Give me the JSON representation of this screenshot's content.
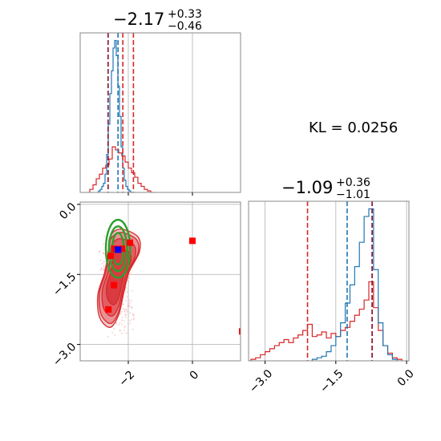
{
  "chart_data": {
    "type": "corner",
    "kl_label": "KL = 0.0256",
    "colors": {
      "posterior_a": "#1f77b4",
      "posterior_b": "#d62728",
      "contour_green": "#2ca02c",
      "marker_red": "#ff0000",
      "marker_blue": "#0000ff",
      "true_line": "#8c1a3a",
      "grid": "#b0b0b0"
    },
    "params": [
      {
        "title_main": "−2.17",
        "title_sup": "+0.33",
        "title_sub": "−0.46",
        "range": [
          -3.5,
          1.5
        ],
        "ticks": [
          -2,
          0
        ],
        "tick_labels": [
          "−2",
          "0"
        ],
        "quantile_lines_b": [
          -2.63,
          -2.17,
          -1.84
        ],
        "quantile_lines_a": [
          -2.32
        ],
        "true_value": -2.63
      },
      {
        "title_main": "−1.09",
        "title_sup": "+0.36",
        "title_sub": "−1.01",
        "range": [
          -3.35,
          0.05
        ],
        "ticks": [
          -3.0,
          -1.5,
          0.0
        ],
        "tick_labels": [
          "−3.0",
          "−1.5",
          "0.0"
        ],
        "quantile_lines_b": [
          -2.1,
          -0.73
        ],
        "quantile_lines_a": [
          -1.26
        ],
        "true_value": -0.73
      }
    ],
    "hist1_a": {
      "x": [
        -2.95,
        -2.9,
        -2.85,
        -2.8,
        -2.75,
        -2.7,
        -2.65,
        -2.6,
        -2.55,
        -2.5,
        -2.45,
        -2.4,
        -2.35,
        -2.3,
        -2.25,
        -2.2,
        -2.15,
        -2.1,
        -2.05,
        -2.0,
        -1.95,
        -1.9
      ],
      "y": [
        0,
        0.01,
        0.02,
        0.04,
        0.06,
        0.12,
        0.25,
        0.45,
        0.65,
        0.8,
        0.95,
        1.0,
        0.9,
        0.7,
        0.5,
        0.3,
        0.16,
        0.08,
        0.04,
        0.02,
        0.01,
        0
      ]
    },
    "hist1_b": {
      "x": [
        -3.15,
        -3.05,
        -2.95,
        -2.85,
        -2.75,
        -2.65,
        -2.55,
        -2.45,
        -2.35,
        -2.25,
        -2.15,
        -2.05,
        -1.95,
        -1.85,
        -1.75,
        -1.65,
        -1.55,
        -1.45,
        -1.35,
        -1.25
      ],
      "y": [
        0.02,
        0.05,
        0.09,
        0.12,
        0.16,
        0.18,
        0.22,
        0.3,
        0.28,
        0.26,
        0.24,
        0.2,
        0.16,
        0.13,
        0.1,
        0.06,
        0.04,
        0.02,
        0.01,
        0
      ]
    },
    "hist2_a": {
      "x": [
        -1.95,
        -1.85,
        -1.75,
        -1.65,
        -1.55,
        -1.45,
        -1.35,
        -1.25,
        -1.15,
        -1.05,
        -0.95,
        -0.85,
        -0.75,
        -0.65,
        -0.55,
        -0.45,
        -0.35,
        -0.25
      ],
      "y": [
        0.01,
        0.02,
        0.03,
        0.06,
        0.1,
        0.16,
        0.25,
        0.38,
        0.5,
        0.62,
        0.78,
        0.95,
        1.0,
        0.6,
        0.25,
        0.1,
        0.04,
        0.01
      ]
    },
    "hist2_b": {
      "x": [
        -3.25,
        -3.15,
        -3.05,
        -2.95,
        -2.85,
        -2.75,
        -2.65,
        -2.55,
        -2.45,
        -2.35,
        -2.25,
        -2.15,
        -2.05,
        -1.95,
        -1.85,
        -1.75,
        -1.65,
        -1.55,
        -1.45,
        -1.35,
        -1.25,
        -1.15,
        -1.05,
        -0.95,
        -0.85,
        -0.75,
        -0.65,
        -0.55,
        -0.45,
        -0.35,
        -0.25,
        -0.15
      ],
      "y": [
        0.01,
        0.02,
        0.04,
        0.06,
        0.08,
        0.1,
        0.12,
        0.14,
        0.12,
        0.15,
        0.17,
        0.2,
        0.24,
        0.16,
        0.17,
        0.19,
        0.15,
        0.18,
        0.16,
        0.2,
        0.22,
        0.26,
        0.3,
        0.34,
        0.4,
        0.52,
        0.35,
        0.2,
        0.1,
        0.05,
        0.02,
        0.01
      ]
    },
    "scatter_markers_red": [
      {
        "x": -2.42,
        "y": -0.95
      },
      {
        "x": -2.55,
        "y": -1.1
      },
      {
        "x": -2.2,
        "y": -0.95
      },
      {
        "x": -1.95,
        "y": -0.82
      },
      {
        "x": -2.45,
        "y": -1.73
      },
      {
        "x": -2.62,
        "y": -2.25
      },
      {
        "x": 0.0,
        "y": -0.78
      },
      {
        "x": 1.55,
        "y": -2.72
      }
    ],
    "scatter_markers_blue": [
      {
        "x": -2.32,
        "y": -0.97
      }
    ]
  }
}
